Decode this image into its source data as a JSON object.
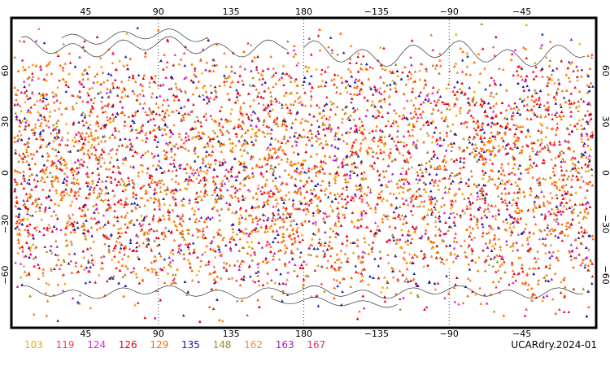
{
  "title": "UCARdry.2024-01",
  "top_lon_labels": [
    "45",
    "90",
    "135",
    "180",
    "−135",
    "−90",
    "−45"
  ],
  "bottom_lon_labels": [
    "45",
    "90",
    "135",
    "180",
    "−135",
    "−90",
    "−45"
  ],
  "left_lat_labels": [
    "60",
    "30",
    "0",
    "−30",
    "−60"
  ],
  "right_lat_labels": [
    "60",
    "30",
    "0",
    "−30",
    "−60"
  ],
  "legend": [
    {
      "label": "103",
      "color": "#f4a700"
    },
    {
      "label": "119",
      "color": "#ff3d3d"
    },
    {
      "label": "124",
      "color": "#e020e0"
    },
    {
      "label": "126",
      "color": "#e2001a"
    },
    {
      "label": "129",
      "color": "#ff6a00"
    },
    {
      "label": "135",
      "color": "#1a1aa0"
    },
    {
      "label": "148",
      "color": "#a08c2a"
    },
    {
      "label": "162",
      "color": "#f08a30"
    },
    {
      "label": "163",
      "color": "#a020c0"
    },
    {
      "label": "167",
      "color": "#e0306a"
    }
  ],
  "map": {
    "lon_range": [
      0,
      360
    ],
    "lat_range": [
      -90,
      90
    ],
    "dotted_gridlines": [
      90,
      180,
      270
    ],
    "marker": "triangle"
  }
}
